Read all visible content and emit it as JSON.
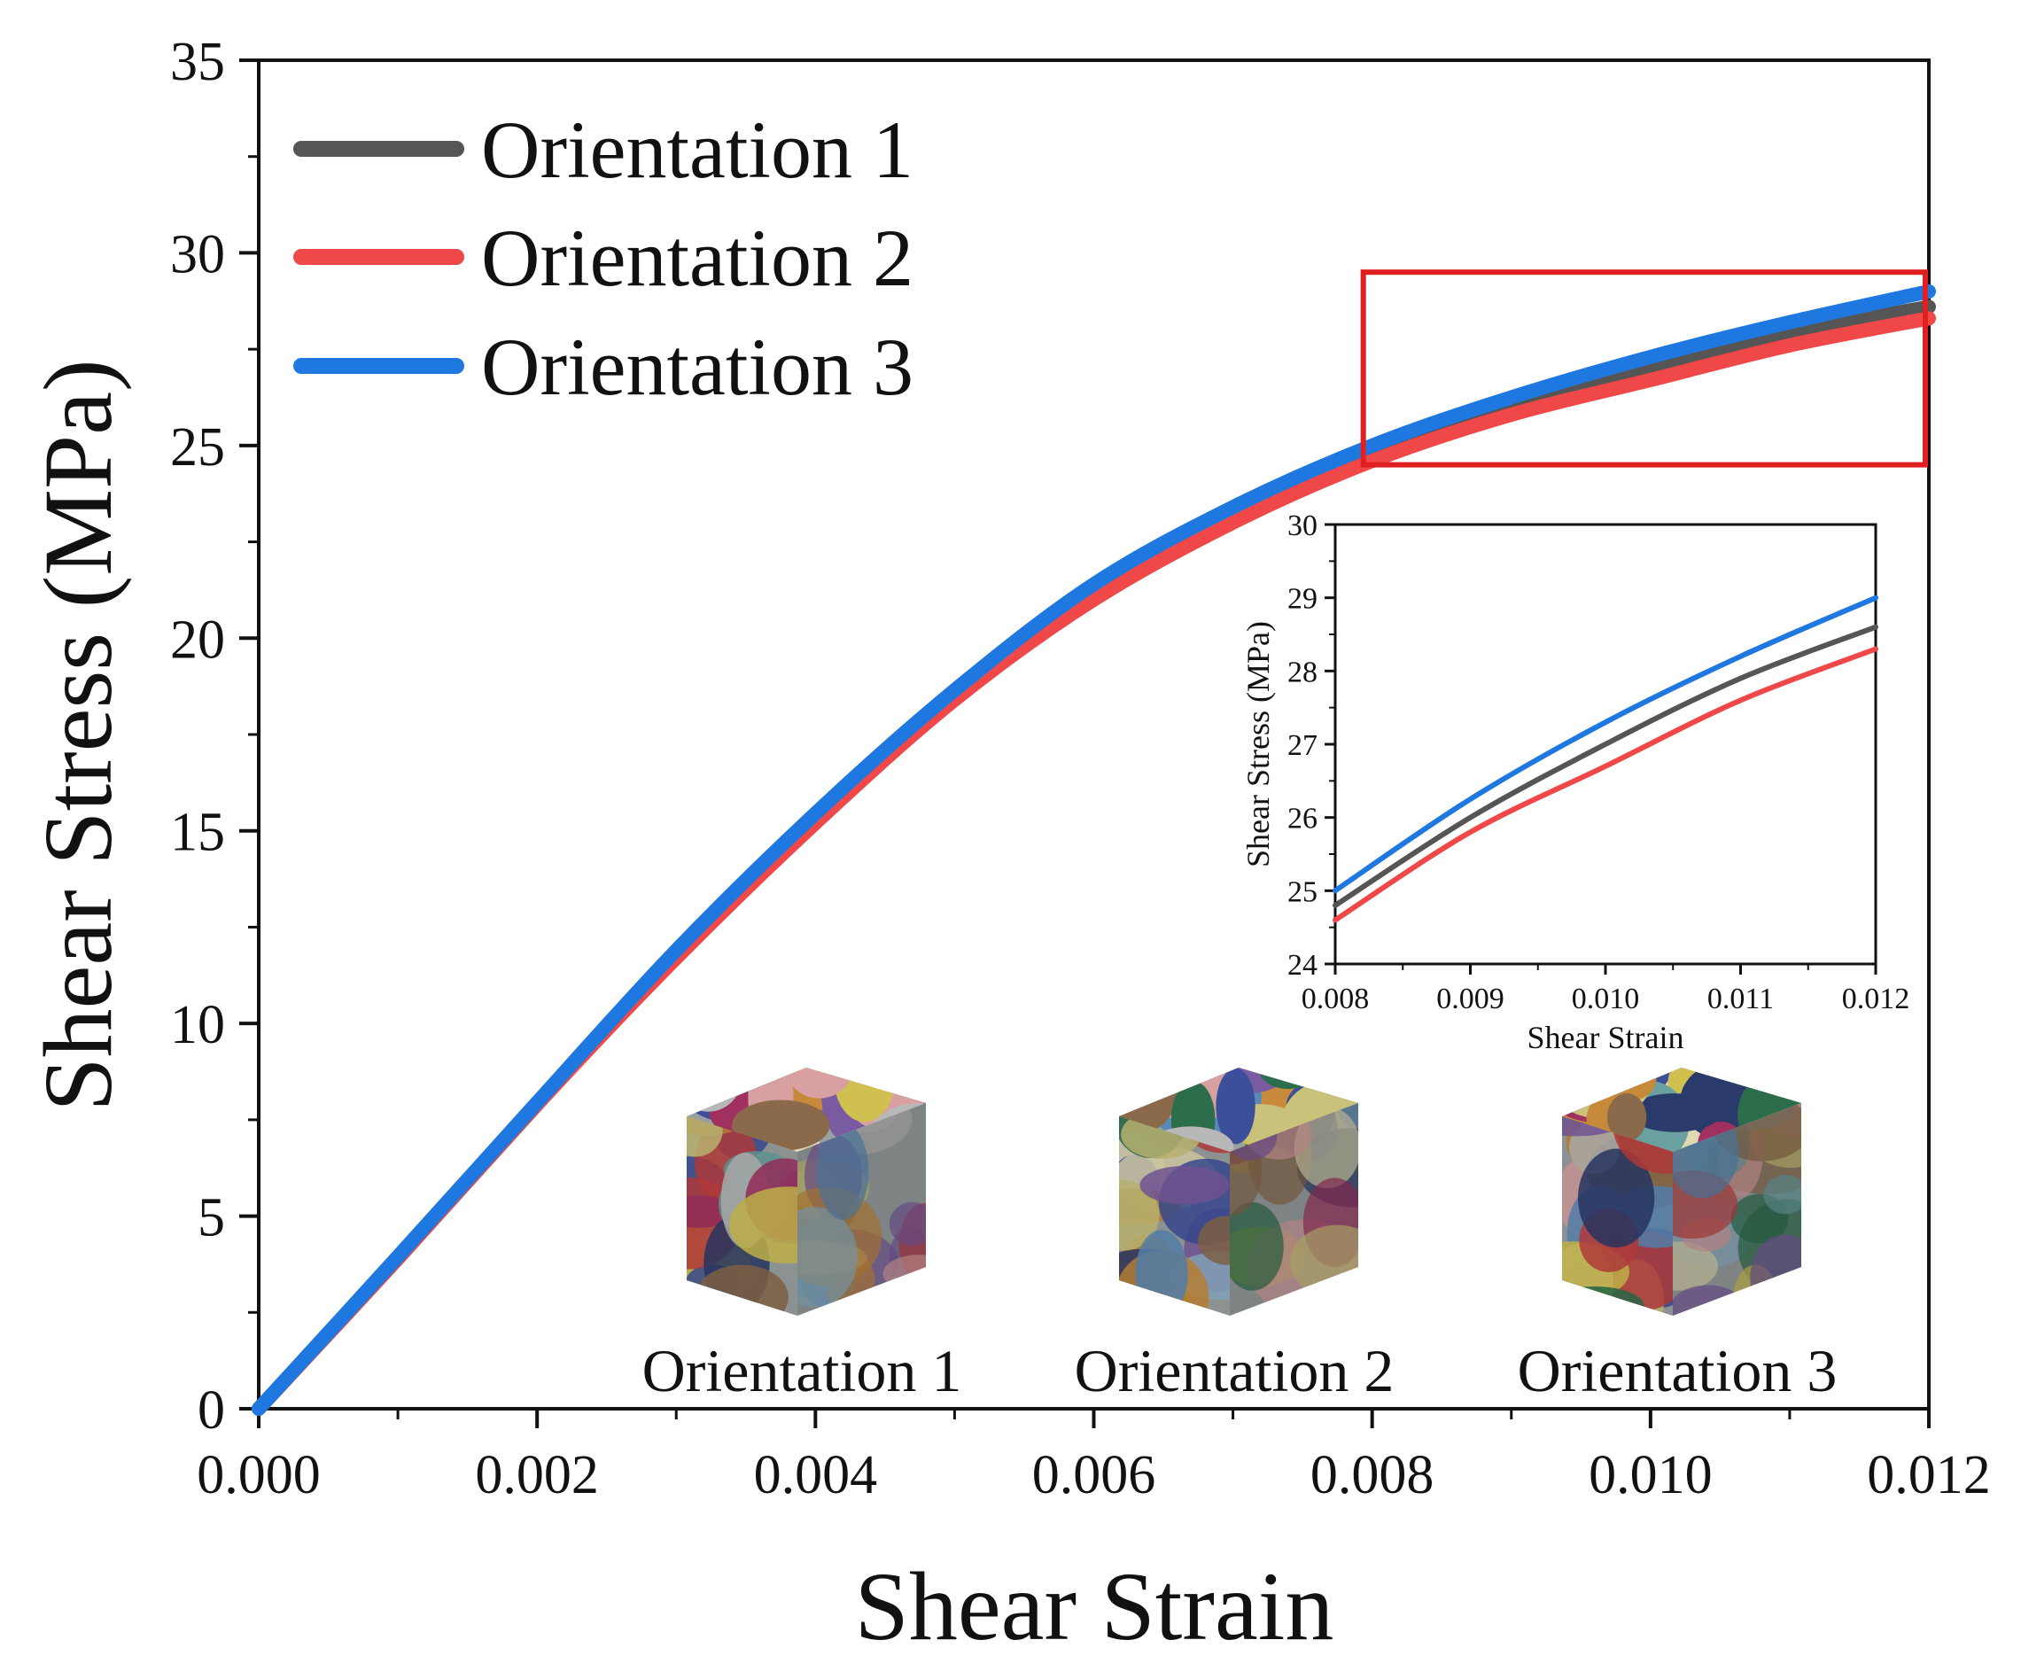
{
  "chart_data": {
    "type": "line",
    "xlabel": "Shear Strain",
    "ylabel": "Shear Stress (MPa)",
    "xlim": [
      0,
      0.012
    ],
    "ylim": [
      0,
      35
    ],
    "xticks": [
      {
        "value": 0.0,
        "label": "0.000"
      },
      {
        "value": 0.002,
        "label": "0.002"
      },
      {
        "value": 0.004,
        "label": "0.004"
      },
      {
        "value": 0.006,
        "label": "0.006"
      },
      {
        "value": 0.008,
        "label": "0.008"
      },
      {
        "value": 0.01,
        "label": "0.010"
      },
      {
        "value": 0.012,
        "label": "0.012"
      }
    ],
    "yticks": [
      {
        "value": 0,
        "label": "0"
      },
      {
        "value": 5,
        "label": "5"
      },
      {
        "value": 10,
        "label": "10"
      },
      {
        "value": 15,
        "label": "15"
      },
      {
        "value": 20,
        "label": "20"
      },
      {
        "value": 25,
        "label": "25"
      },
      {
        "value": 30,
        "label": "30"
      },
      {
        "value": 35,
        "label": "35"
      }
    ],
    "legend_position": "top-left",
    "series": [
      {
        "name": "Orientation 1",
        "color": "#555555",
        "x": [
          0,
          0.001,
          0.002,
          0.003,
          0.004,
          0.005,
          0.006,
          0.007,
          0.008,
          0.009,
          0.01,
          0.011,
          0.012
        ],
        "y": [
          0,
          3.9,
          7.9,
          11.8,
          15.3,
          18.5,
          21.2,
          23.2,
          24.8,
          26.0,
          27.0,
          27.9,
          28.6
        ]
      },
      {
        "name": "Orientation 2",
        "color": "#f04848",
        "x": [
          0,
          0.001,
          0.002,
          0.003,
          0.004,
          0.005,
          0.006,
          0.007,
          0.008,
          0.009,
          0.01,
          0.011,
          0.012
        ],
        "y": [
          0,
          3.9,
          7.9,
          11.7,
          15.2,
          18.4,
          21.0,
          23.0,
          24.6,
          25.8,
          26.7,
          27.6,
          28.3
        ]
      },
      {
        "name": "Orientation 3",
        "color": "#1f78e0",
        "x": [
          0,
          0.001,
          0.002,
          0.003,
          0.004,
          0.005,
          0.006,
          0.007,
          0.008,
          0.009,
          0.01,
          0.011,
          0.012
        ],
        "y": [
          0,
          3.95,
          7.95,
          11.9,
          15.45,
          18.65,
          21.4,
          23.4,
          25.0,
          26.25,
          27.3,
          28.2,
          29.0
        ]
      }
    ],
    "zoom_box": {
      "xlim": [
        0.008,
        0.012
      ],
      "ylim": [
        24.5,
        29.5
      ],
      "color": "#e02020"
    },
    "inset": {
      "xlabel": "Shear Strain",
      "ylabel": "Shear Stress (MPa)",
      "xlim": [
        0.008,
        0.012
      ],
      "ylim": [
        24,
        30
      ],
      "xticks": [
        {
          "value": 0.008,
          "label": "0.008"
        },
        {
          "value": 0.009,
          "label": "0.009"
        },
        {
          "value": 0.01,
          "label": "0.010"
        },
        {
          "value": 0.011,
          "label": "0.011"
        },
        {
          "value": 0.012,
          "label": "0.012"
        }
      ],
      "yticks": [
        {
          "value": 24,
          "label": "24"
        },
        {
          "value": 25,
          "label": "25"
        },
        {
          "value": 26,
          "label": "26"
        },
        {
          "value": 27,
          "label": "27"
        },
        {
          "value": 28,
          "label": "28"
        },
        {
          "value": 29,
          "label": "29"
        },
        {
          "value": 30,
          "label": "30"
        }
      ]
    },
    "microstructures": [
      {
        "label": "Orientation 1"
      },
      {
        "label": "Orientation 2"
      },
      {
        "label": "Orientation 3"
      }
    ]
  }
}
